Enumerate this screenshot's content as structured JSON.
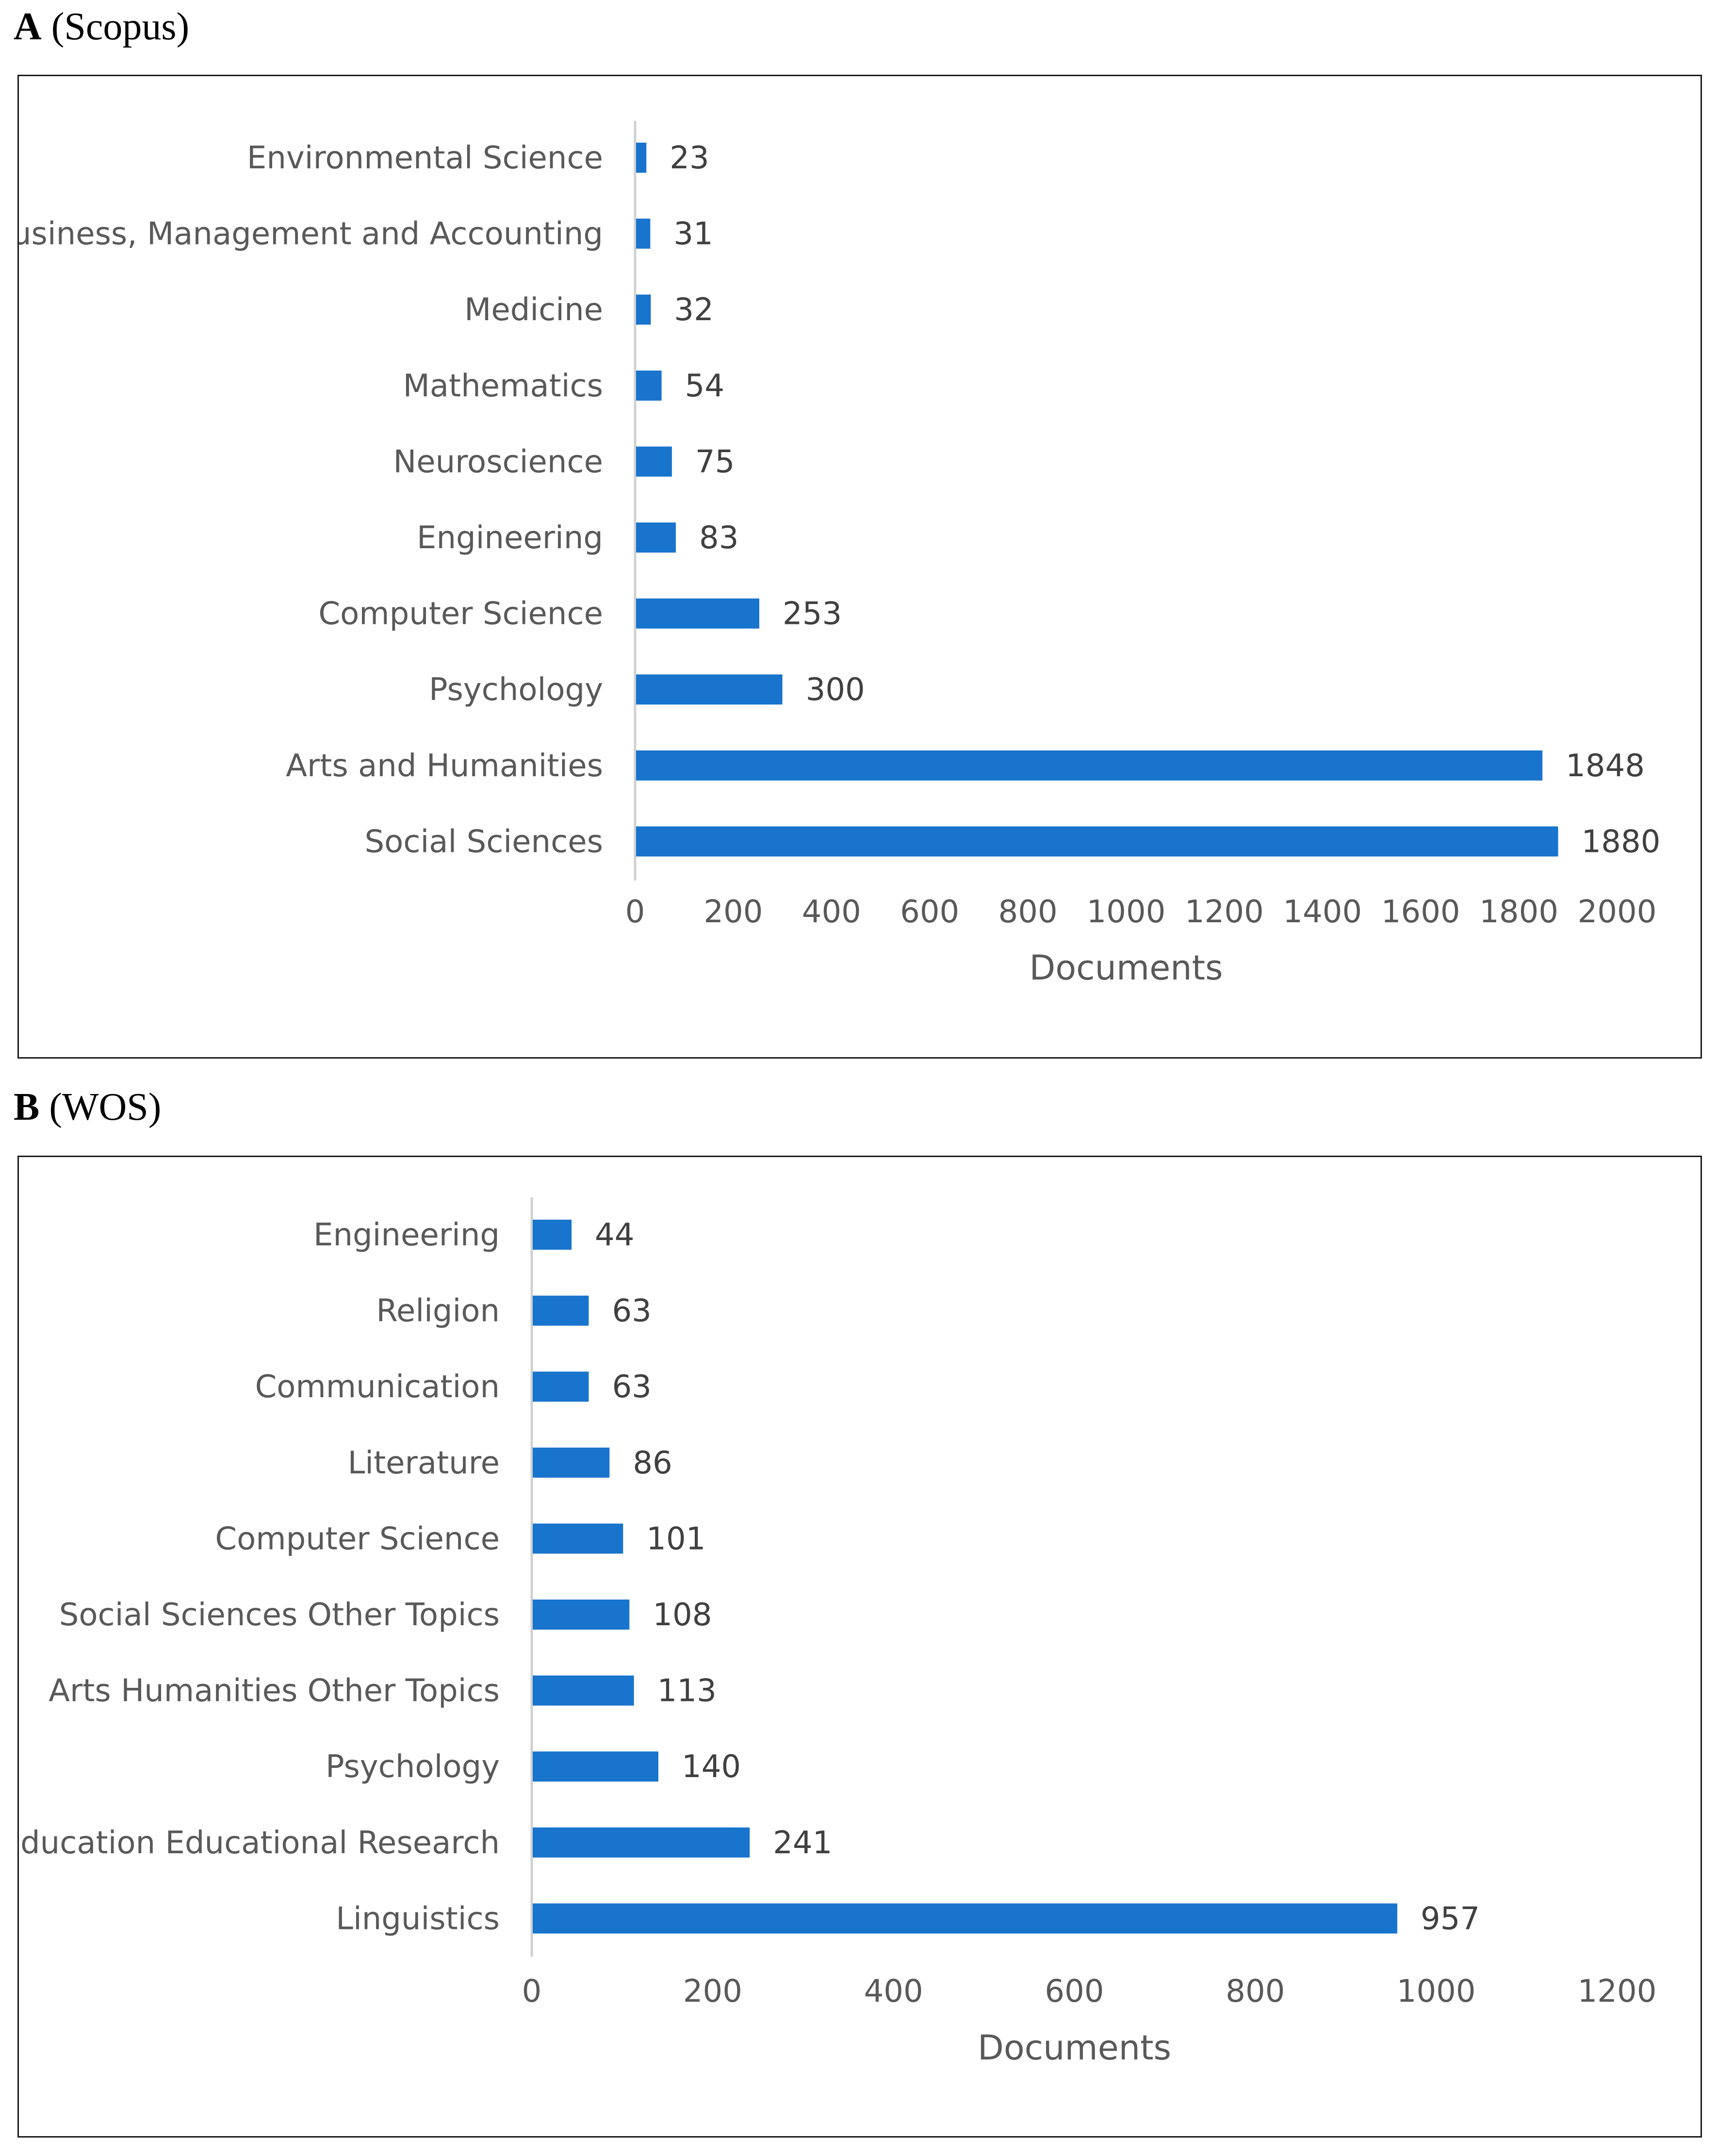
{
  "chart_data": [
    {
      "type": "bar",
      "orientation": "horizontal",
      "panel_letter": "A",
      "panel_title": "(Scopus)",
      "categories": [
        "Environmental Science",
        "Business, Management and Accounting",
        "Medicine",
        "Mathematics",
        "Neuroscience",
        "Engineering",
        "Computer Science",
        "Psychology",
        "Arts and Humanities",
        "Social Sciences"
      ],
      "values": [
        23,
        31,
        32,
        54,
        75,
        83,
        253,
        300,
        1848,
        1880
      ],
      "xlabel": "Documents",
      "xlim": [
        0,
        2000
      ],
      "xticks": [
        0,
        200,
        400,
        600,
        800,
        1000,
        1200,
        1400,
        1600,
        1800,
        2000
      ],
      "bar_color": "#1874CD"
    },
    {
      "type": "bar",
      "orientation": "horizontal",
      "panel_letter": "B",
      "panel_title": "(WOS)",
      "categories": [
        "Engineering",
        "Religion",
        "Communication",
        "Literature",
        "Computer Science",
        "Social Sciences Other Topics",
        "Arts Humanities Other Topics",
        "Psychology",
        "Education Educational Research",
        "Linguistics"
      ],
      "values": [
        44,
        63,
        63,
        86,
        101,
        108,
        113,
        140,
        241,
        957
      ],
      "xlabel": "Documents",
      "xlim": [
        0,
        1200
      ],
      "xticks": [
        0,
        200,
        400,
        600,
        800,
        1000,
        1200
      ],
      "bar_color": "#1874CD"
    }
  ]
}
